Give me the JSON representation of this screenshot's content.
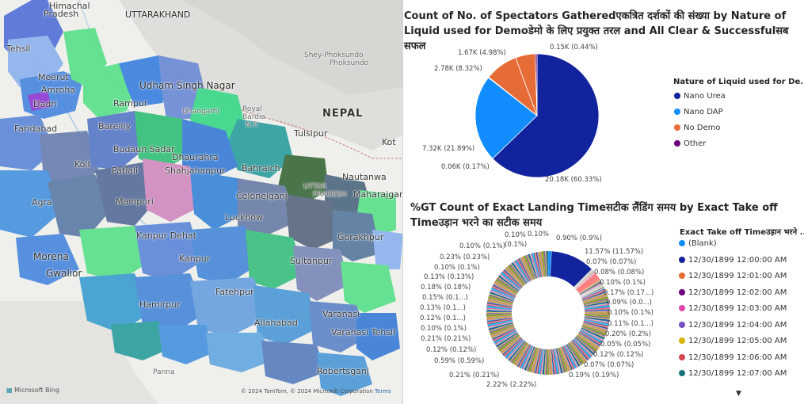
{
  "map": {
    "labels": {
      "uttarakhand": "UTTARAKHAND",
      "himachal_top": "Himachal",
      "pradesh_top": "Pradesh",
      "tehsil_left": "Tehsil",
      "meerut": "Meerut",
      "amroha": "Amroha",
      "dadri": "Dadri",
      "faridabad": "Faridabad",
      "udham_singh_nagar": "Udham Singh Nagar",
      "rampur": "Rampur",
      "dhangarhi": "Dhangarhi",
      "royal_bardia": "Royal",
      "royal_bardia2": "Bardia",
      "royal_bardia3": "N.P.",
      "bareilly": "Bareilly",
      "budaun_sadar": "Budaun Sadar",
      "dhaurahra": "Dhaurahra",
      "koil": "Koil",
      "patiali": "Patiali",
      "shahjahanpur": "Shahjahanpur",
      "bahraich": "Bahraich",
      "shey_phoksundo": "Shey-Phoksundo",
      "nepal": "NEPAL",
      "tulsipur": "Tulsipur",
      "nautanwa": "Nautanwa",
      "agra": "Agra",
      "mainpuri": "Mainpuri",
      "colonelganj": "Colonelganj",
      "maharajganj": "Maharajganj",
      "uttar_pradesh": "UTTAR",
      "uttar_pradesh2": "PRADESH",
      "lucknow": "Lucknow",
      "gorakhpur": "Gorakhpur",
      "kanpur_dehat": "Kanpur Dehat",
      "kanpur": "Kanpur",
      "sultanpur": "Sultanpur",
      "morena": "Morena",
      "gwalior": "Gwalior",
      "fatehpur": "Fatehpur",
      "hamirpur": "Hamirpur",
      "varanasi": "Varanasi",
      "allahabad": "Allahabad",
      "varanasi_tehsil": "Varanasi Tehsil",
      "robertsganj": "Robertsganj",
      "panna": "Panna",
      "kot": "Kot",
      "phoksundo": "Phoksundo"
    },
    "attribution": "Microsoft Bing",
    "copyright": "© 2024 TomTom, © 2024 Microsoft Corporation",
    "terms": "Terms"
  },
  "pie_chart": {
    "title": "Count of No. of Spectators Gatheredएकत्रित दर्शकों की संख्या by Nature of Liquid used for Demoडेमो के लिए प्रयुक्त तरल and All Clear & Successfulसब सफल",
    "legend_title": "Nature of Liquid used for De...",
    "legend": [
      {
        "label": "Nano Urea",
        "color": "#12239e"
      },
      {
        "label": "Nano DAP",
        "color": "#118dff"
      },
      {
        "label": "No Demo",
        "color": "#e66c37"
      },
      {
        "label": "Other",
        "color": "#6b007b"
      }
    ],
    "data_labels": [
      "0.15K (0.44%)",
      "1.67K (4.98%)",
      "2.78K (8.32%)",
      "7.32K (21.89%)",
      "0.06K (0.17%)",
      "20.18K (60.33%)"
    ]
  },
  "donut_chart": {
    "title": "%GT Count of Exact Landing Timeसटीक लैंडिंग समय by Exact Take off Timeउड़ान भरने का सटीक समय",
    "legend_title": "Exact Take off Timeउड़ान भरने ...",
    "legend": [
      {
        "label": "(Blank)",
        "color": "#118dff"
      },
      {
        "label": "12/30/1899 12:00:00 AM",
        "color": "#12239e"
      },
      {
        "label": "12/30/1899 12:01:00 AM",
        "color": "#e66c37"
      },
      {
        "label": "12/30/1899 12:02:00 AM",
        "color": "#6b007b"
      },
      {
        "label": "12/30/1899 12:03:00 AM",
        "color": "#e044a7"
      },
      {
        "label": "12/30/1899 12:04:00 AM",
        "color": "#744ec2"
      },
      {
        "label": "12/30/1899 12:05:00 AM",
        "color": "#d9b300"
      },
      {
        "label": "12/30/1899 12:06:00 AM",
        "color": "#d64550"
      },
      {
        "label": "12/30/1899 12:07:00 AM",
        "color": "#197278"
      }
    ],
    "left_labels": [
      "0.10% (0.1%)",
      "0.10%",
      "(0.1%)",
      "0.23% (0.23%)",
      "0.10% (0.1%)",
      "0.13% (0.13%)",
      "0.18% (0.18%)",
      "0.15% (0.1...)",
      "0.13% (0.1...)",
      "0.12% (0.1...)",
      "0.10% (0.1%)",
      "0.21% (0.21%)",
      "0.12% (0.12%)",
      "0.59% (0.59%)",
      "0.21% (0.21%)",
      "2.22% (2.22%)"
    ],
    "top_labels": [
      "0.10%",
      "0.90% (0.9%)"
    ],
    "right_labels": [
      "11.57% (11.57%)",
      "0.07% (0.07%)",
      "0.08% (0.08%)",
      "0.10% (0.1%)",
      "0.17% (0.17...)",
      "0.09% (0.0...)",
      "0.10% (0.1%)",
      "0.11% (0.1...)",
      "0.20% (0.2%)",
      "0.05% (0.05%)",
      "0.12% (0.12%)",
      "0.07% (0.07%)",
      "0.19% (0.19%)"
    ]
  },
  "chart_data": [
    {
      "type": "pie",
      "title": "Count of No. of Spectators Gatheredएकत्रित दर्शकों की संख्या by Nature of Liquid used for Demoडेमो के लिए प्रयुक्त तरल and All Clear & Successfulसब सफल",
      "series": [
        {
          "name": "Nano Urea",
          "values": [
            20.18
          ],
          "percent": 60.33
        },
        {
          "name": "Nano DAP",
          "values": [
            7.32
          ],
          "percent": 21.89
        },
        {
          "name": "No Demo",
          "values": [
            2.78
          ],
          "percent": 8.32
        },
        {
          "name": "No Demo",
          "values": [
            1.67
          ],
          "percent": 4.98
        },
        {
          "name": "Other",
          "values": [
            0.15
          ],
          "percent": 0.44
        },
        {
          "name": "Other",
          "values": [
            0.06
          ],
          "percent": 0.17
        }
      ],
      "legend_position": "right"
    },
    {
      "type": "pie",
      "title": "%GT Count of Exact Landing Timeसटीक लैंडिंग समय by Exact Take off Timeउड़ान भरने का सटीक समय",
      "values_percent": [
        0.9,
        11.57,
        0.07,
        0.08,
        0.1,
        0.17,
        0.09,
        0.1,
        0.11,
        0.2,
        0.05,
        0.12,
        0.07,
        0.19,
        2.22,
        0.21,
        0.59,
        0.12,
        0.21,
        0.1,
        0.12,
        0.13,
        0.15,
        0.18,
        0.13,
        0.1,
        0.23,
        0.1,
        0.1
      ],
      "legend_position": "right"
    }
  ]
}
